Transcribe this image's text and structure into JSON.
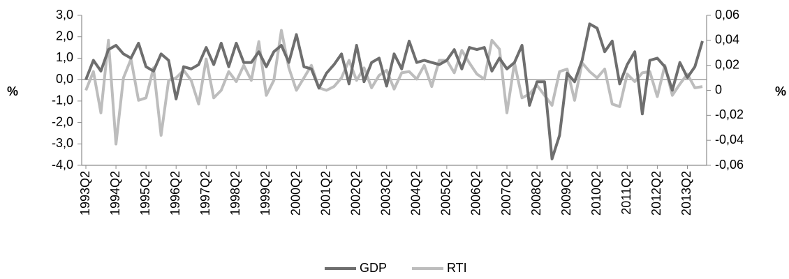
{
  "chart_data": {
    "type": "line",
    "y_label": "%",
    "y2_label": "%",
    "categories": [
      "1993Q2",
      null,
      null,
      null,
      "1994Q2",
      null,
      null,
      null,
      "1995Q2",
      null,
      null,
      null,
      "1996Q2",
      null,
      null,
      null,
      "1997Q2",
      null,
      null,
      null,
      "1998Q2",
      null,
      null,
      null,
      "1999Q2",
      null,
      null,
      null,
      "2000Q2",
      null,
      null,
      null,
      "2001Q2",
      null,
      null,
      null,
      "2002Q2",
      null,
      null,
      null,
      "2003Q2",
      null,
      null,
      null,
      "2004Q2",
      null,
      null,
      null,
      "2005Q2",
      null,
      null,
      null,
      "2006Q2",
      null,
      null,
      null,
      "2007Q2",
      null,
      null,
      null,
      "2008Q2",
      null,
      null,
      null,
      "2009Q2",
      null,
      null,
      null,
      "2010Q2",
      null,
      null,
      null,
      "2011Q2",
      null,
      null,
      null,
      "2012Q2",
      null,
      null,
      null,
      "2013Q2",
      null,
      null
    ],
    "series": [
      {
        "name": "GDP",
        "color": "#6e6e6e",
        "values": [
          0,
          0.9,
          0.4,
          1.4,
          1.6,
          1.2,
          1.0,
          1.7,
          0.6,
          0.4,
          1.2,
          0.9,
          -0.9,
          0.6,
          0.5,
          0.7,
          1.5,
          0.7,
          1.7,
          0.6,
          1.7,
          0.8,
          0.8,
          1.3,
          0.6,
          1.3,
          1.6,
          0.8,
          2.1,
          0.6,
          0.5,
          -0.4,
          0.3,
          0.7,
          1.2,
          -0.2,
          1.6,
          -0.1,
          0.8,
          1.0,
          -0.3,
          1.2,
          0.5,
          1.8,
          0.8,
          0.9,
          0.8,
          0.7,
          0.9,
          1.4,
          0.5,
          1.5,
          1.4,
          1.5,
          0.4,
          1.0,
          0.5,
          0.8,
          1.6,
          -1.2,
          -0.1,
          -0.1,
          -3.7,
          -2.6,
          0.3,
          -0.1,
          0.9,
          2.6,
          2.4,
          1.3,
          1.8,
          -0.2,
          0.7,
          1.3,
          -1.6,
          0.9,
          1.0,
          0.6,
          -0.5,
          0.8,
          0.1,
          0.6,
          1.8
        ]
      },
      {
        "name": "RTI",
        "color": "#bdbdbd",
        "axis": "y2",
        "values": [
          0,
          0.015,
          -0.018,
          0.04,
          -0.043,
          0.01,
          0.025,
          -0.008,
          -0.006,
          0.018,
          -0.036,
          0.008,
          0.01,
          0.016,
          0.008,
          -0.011,
          0.025,
          -0.006,
          0.0,
          0.015,
          0.007,
          0.02,
          0.008,
          0.039,
          -0.004,
          0.008,
          0.048,
          0.018,
          0,
          0.01,
          0.02,
          0.002,
          0,
          0.003,
          0.01,
          0.024,
          0.008,
          0.018,
          0.002,
          0.012,
          0.016,
          0.001,
          0.014,
          0.015,
          0.009,
          0.02,
          0.003,
          0.024,
          0.024,
          0.014,
          0.032,
          0.022,
          0.013,
          0.009,
          0.04,
          0.033,
          -0.018,
          0.022,
          -0.006,
          -0.003,
          0.004,
          -0.004,
          -0.012,
          0.015,
          0.017,
          -0.008,
          0.022,
          0.015,
          0.01,
          0.017,
          -0.011,
          -0.013,
          0.013,
          0.007,
          0.014,
          0.015,
          -0.005,
          0.02,
          -0.004,
          0.005,
          0.013,
          0.002,
          0.003
        ]
      }
    ],
    "ylim": [
      -4,
      3
    ],
    "yticks": [
      {
        "value": -4,
        "label": "-4,0"
      },
      {
        "value": -3,
        "label": "-3,0"
      },
      {
        "value": -2,
        "label": "-2,0"
      },
      {
        "value": -1,
        "label": "-1,0"
      },
      {
        "value": 0,
        "label": "0,0"
      },
      {
        "value": 1,
        "label": "1,0"
      },
      {
        "value": 2,
        "label": "2,0"
      },
      {
        "value": 3,
        "label": "3,0"
      }
    ],
    "y2lim": [
      -0.06,
      0.06
    ],
    "y2ticks": [
      {
        "value": -0.06,
        "label": "-0,06"
      },
      {
        "value": -0.04,
        "label": "-0,04"
      },
      {
        "value": -0.02,
        "label": "-0,02"
      },
      0,
      {
        "value": 0.02,
        "label": "0,02"
      },
      {
        "value": 0.04,
        "label": "0,04"
      },
      {
        "value": 0.06,
        "label": "0,06"
      }
    ],
    "legend": "bottom"
  }
}
